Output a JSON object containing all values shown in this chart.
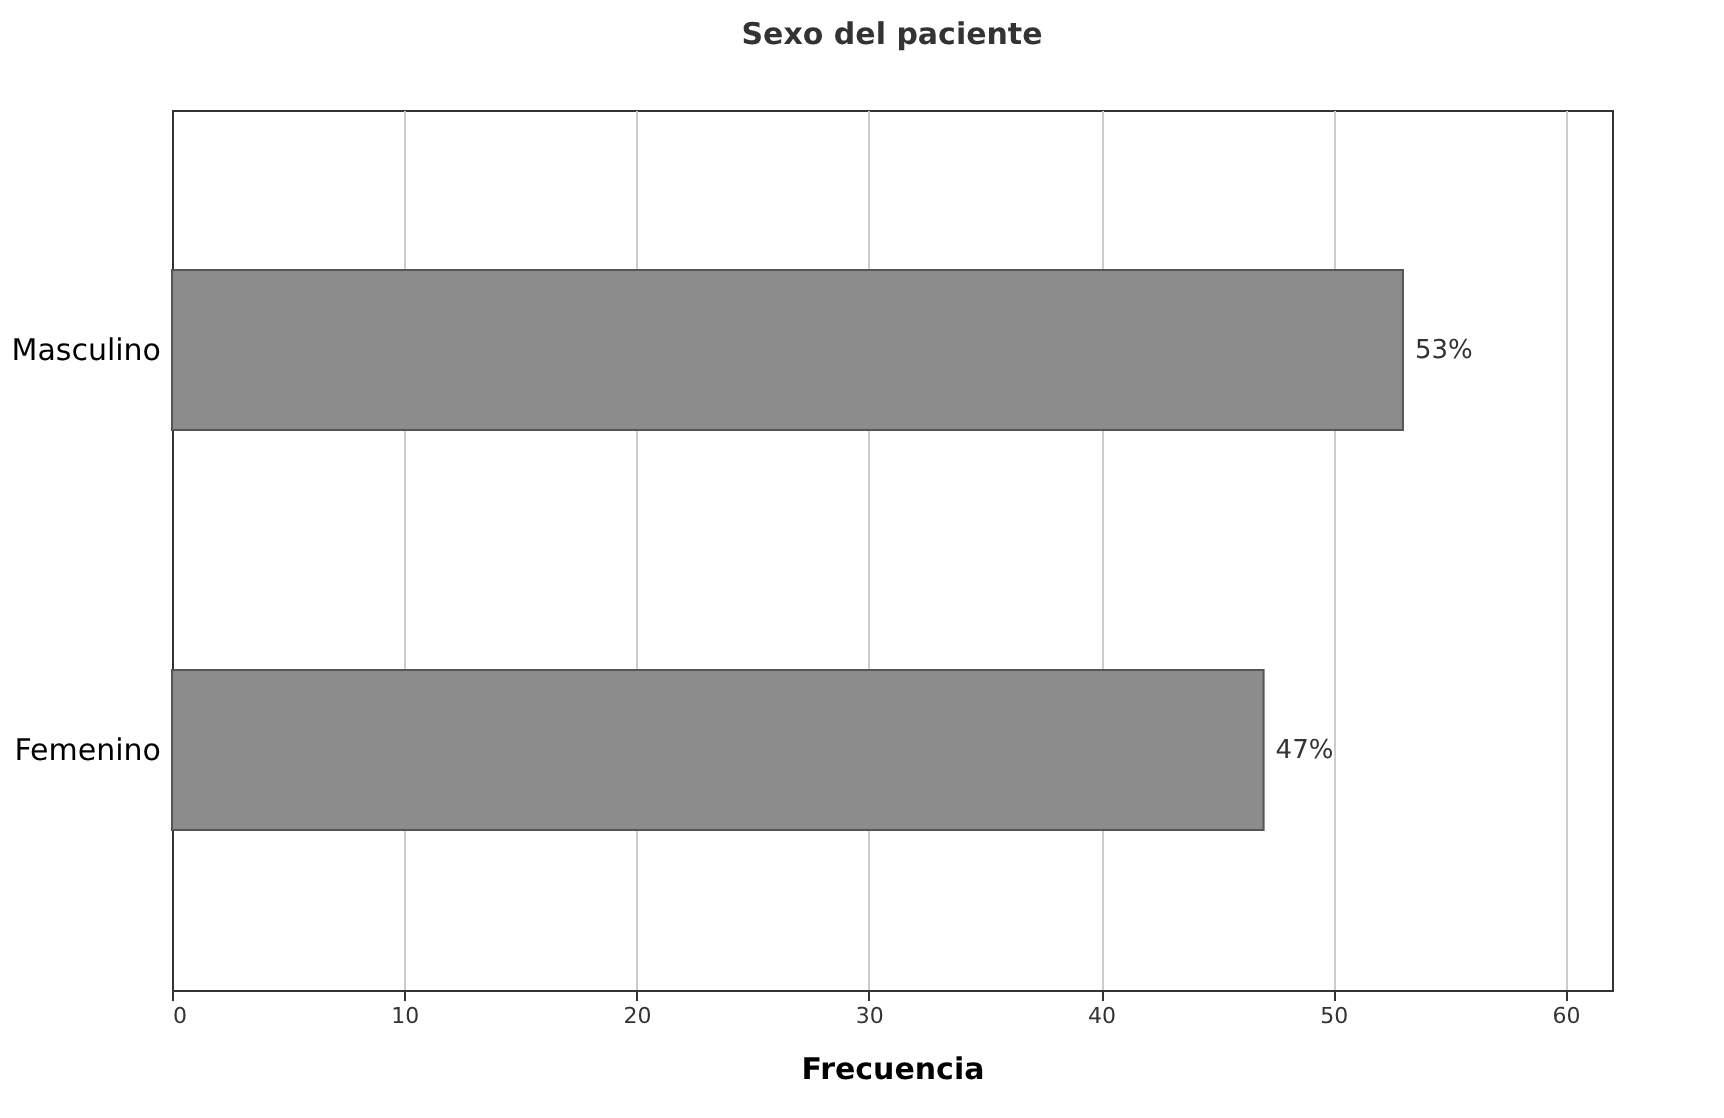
{
  "chart_data": {
    "type": "bar",
    "orientation": "horizontal",
    "title": "Sexo del paciente",
    "xlabel": "Frecuencia",
    "categories": [
      "Masculino",
      "Femenino"
    ],
    "values": [
      53,
      47
    ],
    "color": "#8c8c8c",
    "value_labels": [
      "53%",
      "47%"
    ],
    "xlim": [
      0,
      62
    ],
    "xticks": [
      0,
      10,
      20,
      30,
      40,
      50,
      60
    ],
    "grid": "x"
  }
}
